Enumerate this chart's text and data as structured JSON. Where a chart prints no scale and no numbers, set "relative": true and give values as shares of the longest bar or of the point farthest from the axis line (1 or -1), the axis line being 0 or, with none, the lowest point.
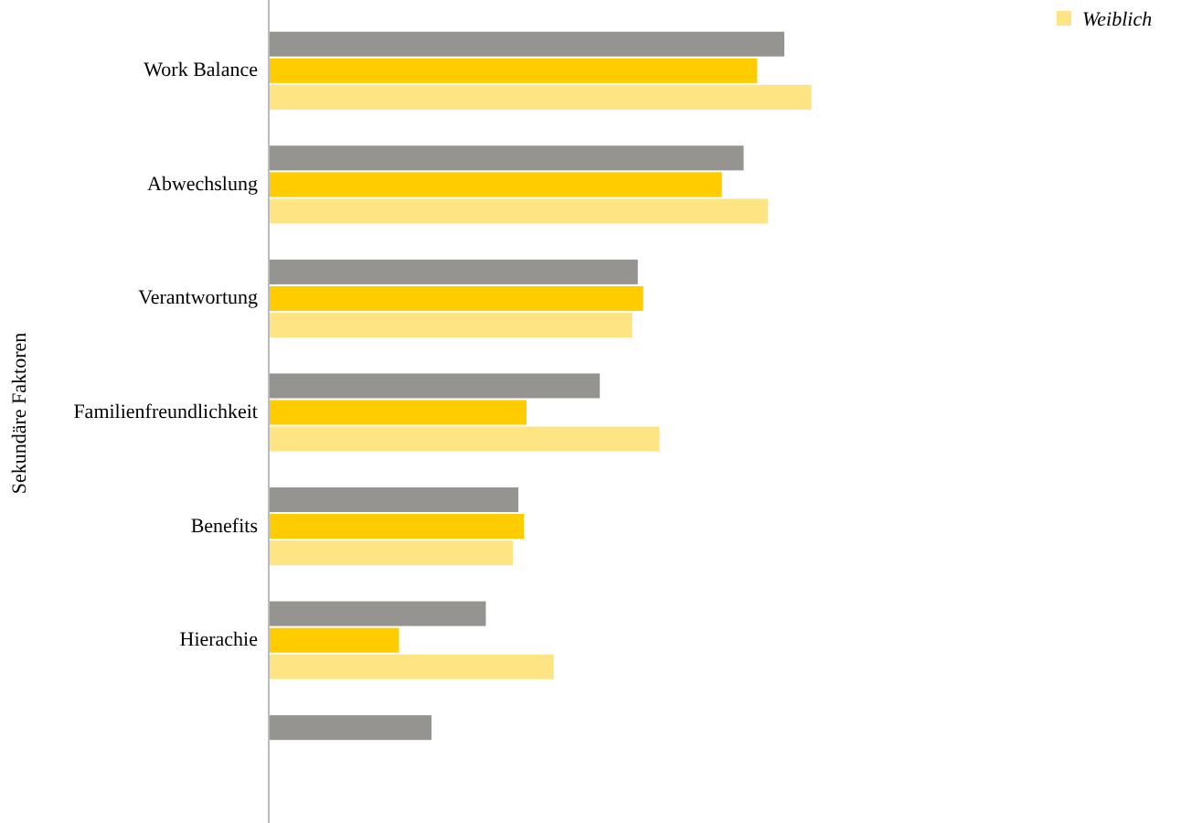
{
  "chart_data": {
    "type": "bar",
    "orientation": "horizontal",
    "relative": true,
    "ylabel": "Sekundäre Faktoren",
    "categories": [
      "Work Balance",
      "Abwechslung",
      "Verantwortung",
      "Familienfreundlichkeit",
      "Benefits",
      "Hierachie",
      null
    ],
    "series": [
      {
        "color": "#959490",
        "values": [
          0.95,
          0.875,
          0.68,
          0.61,
          0.46,
          0.4,
          0.3
        ]
      },
      {
        "color": "#ffcc00",
        "values": [
          0.9,
          0.835,
          0.69,
          0.475,
          0.47,
          0.24,
          null
        ]
      },
      {
        "name": "Weiblich",
        "color": "#ffe484",
        "values": [
          1,
          0.92,
          0.67,
          0.72,
          0.45,
          0.525,
          null
        ]
      }
    ],
    "legend": "top right"
  }
}
